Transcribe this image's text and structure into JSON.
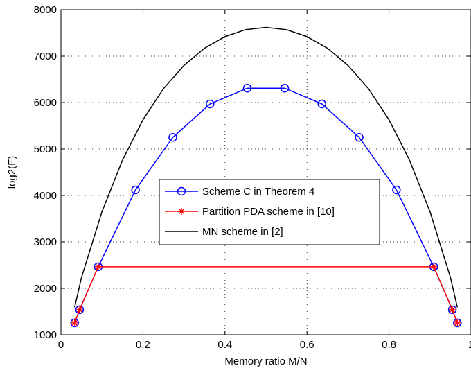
{
  "chart_data": {
    "type": "line",
    "title": "",
    "xlabel": "Memory ratio M/N",
    "ylabel": "log2(F)",
    "xlim": [
      0,
      1
    ],
    "ylim": [
      1000,
      8000
    ],
    "xticks": [
      0,
      0.2,
      0.4,
      0.6,
      0.8,
      1
    ],
    "xtick_labels": [
      "0",
      "0.2",
      "0.4",
      "0.6",
      "0.8",
      "1"
    ],
    "yticks": [
      1000,
      2000,
      3000,
      4000,
      5000,
      6000,
      7000,
      8000
    ],
    "ytick_labels": [
      "1000",
      "2000",
      "3000",
      "4000",
      "5000",
      "6000",
      "7000",
      "8000"
    ],
    "grid": true,
    "legend_position": "center",
    "series": [
      {
        "name": "Scheme C in Theorem 4",
        "color": "#0000ff",
        "marker": "circle",
        "x": [
          0.0333,
          0.0455,
          0.0909,
          0.1818,
          0.2727,
          0.3636,
          0.4545,
          0.5455,
          0.6364,
          0.7273,
          0.8182,
          0.9091,
          0.9545,
          0.9667
        ],
        "y": [
          1255,
          1540,
          2465,
          4120,
          5250,
          5970,
          6310,
          6310,
          5970,
          5250,
          4120,
          2465,
          1540,
          1255
        ]
      },
      {
        "name": "Partition PDA scheme in [10]",
        "color": "#ff0000",
        "marker": "asterisk",
        "x": [
          0.0333,
          0.0455,
          0.0909,
          0.9091,
          0.9545,
          0.9667
        ],
        "y": [
          1255,
          1540,
          2465,
          2465,
          1540,
          1255
        ]
      },
      {
        "name": "MN scheme in [2]",
        "color": "#000000",
        "marker": "none",
        "x": [
          0.0333,
          0.05,
          0.1,
          0.15,
          0.2,
          0.25,
          0.3,
          0.35,
          0.4,
          0.45,
          0.5,
          0.55,
          0.6,
          0.65,
          0.7,
          0.75,
          0.8,
          0.85,
          0.9,
          0.95,
          0.9667
        ],
        "y": [
          1590,
          2230,
          3650,
          4760,
          5630,
          6300,
          6800,
          7170,
          7420,
          7570,
          7620,
          7570,
          7420,
          7170,
          6800,
          6300,
          5630,
          4760,
          3650,
          2230,
          1590
        ]
      }
    ]
  }
}
